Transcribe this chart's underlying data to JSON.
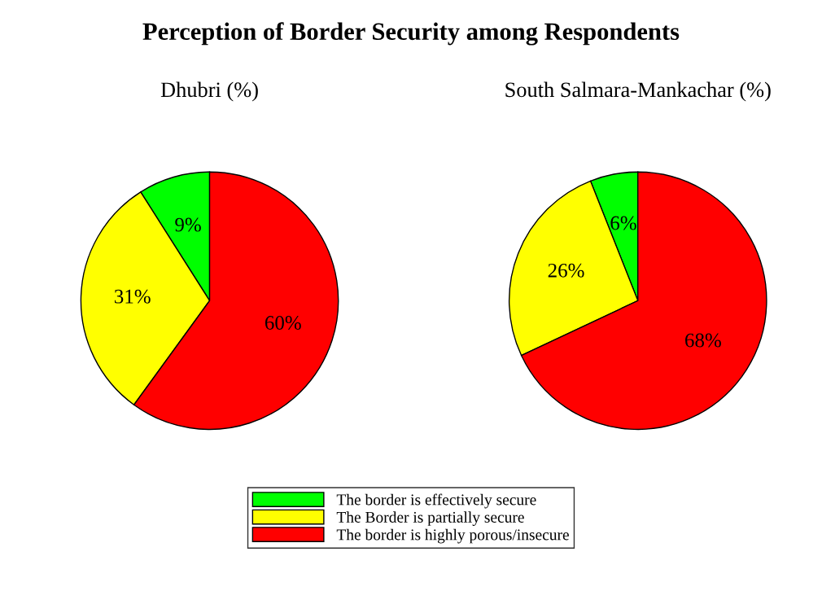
{
  "chart_data": [
    {
      "type": "pie",
      "title": "Dhubri (%)",
      "annotations": [
        "Perception of Border Security among Respondents"
      ],
      "categories": [
        "The border is effectively secure",
        "The Border is partially secure",
        "The border is highly porous/insecure"
      ],
      "values": [
        9,
        31,
        60
      ],
      "value_labels": [
        "9%",
        "31%",
        "60%"
      ],
      "colors": [
        "#00ff00",
        "#ffff00",
        "#ff0000"
      ],
      "legend": "bottom"
    },
    {
      "type": "pie",
      "title": "South Salmara-Mankachar (%)",
      "categories": [
        null,
        null,
        null
      ],
      "values": [
        6,
        26,
        68
      ],
      "value_labels": [
        "6%",
        "26%",
        "68%"
      ],
      "colors": [
        "#00ff00",
        "#ffff00",
        "#ff0000"
      ]
    }
  ]
}
